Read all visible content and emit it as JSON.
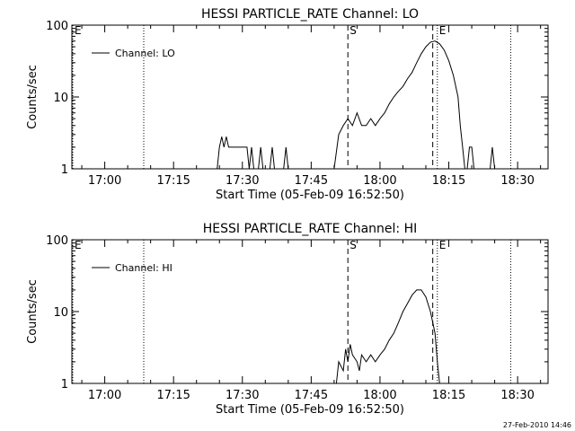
{
  "chart_data": [
    {
      "type": "line",
      "title": "HESSI PARTICLE_RATE Channel: LO",
      "xlabel": "Start Time (05-Feb-09 16:52:50)",
      "ylabel": "Counts/sec",
      "yscale": "log",
      "ylim": [
        1,
        100
      ],
      "xlim_minutes_after_start": [
        0,
        103.8
      ],
      "xticks": [
        "17:00",
        "17:15",
        "17:30",
        "17:45",
        "18:00",
        "18:15",
        "18:30"
      ],
      "yticks": [
        "1",
        "10",
        "100"
      ],
      "legend": {
        "label": "Channel: LO",
        "position": "top-left"
      },
      "markers": [
        {
          "label": "E",
          "style": "dotted",
          "time": "16:52:50"
        },
        {
          "label": "",
          "style": "dotted",
          "time": "17:08:30"
        },
        {
          "label": "S",
          "style": "dashed",
          "time": "17:53:00"
        },
        {
          "label": "",
          "style": "dashed",
          "time": "18:11:30"
        },
        {
          "label": "E",
          "style": "dotted",
          "time": "18:12:30"
        },
        {
          "label": "",
          "style": "dotted",
          "time": "18:28:30"
        }
      ],
      "series": [
        {
          "points": [
            [
              "17:24:30",
              1
            ],
            [
              "17:25:00",
              2
            ],
            [
              "17:25:30",
              2.8
            ],
            [
              "17:26:00",
              2
            ],
            [
              "17:26:30",
              2.8
            ],
            [
              "17:27:00",
              2
            ],
            [
              "17:31:00",
              2
            ],
            [
              "17:31:30",
              1
            ],
            [
              "17:32:00",
              2
            ],
            [
              "17:32:30",
              1
            ],
            [
              "17:33:30",
              1
            ],
            [
              "17:34:00",
              2
            ],
            [
              "17:34:30",
              1
            ],
            [
              "17:36:00",
              1
            ],
            [
              "17:36:30",
              2
            ],
            [
              "17:37:00",
              1
            ],
            [
              "17:39:00",
              1
            ],
            [
              "17:39:30",
              2
            ],
            [
              "17:40:00",
              1
            ],
            [
              "17:50:00",
              1
            ],
            [
              "17:51:00",
              3
            ],
            [
              "17:52:00",
              4
            ],
            [
              "17:53:00",
              5
            ],
            [
              "17:54:00",
              4
            ],
            [
              "17:55:00",
              6
            ],
            [
              "17:56:00",
              4
            ],
            [
              "17:57:00",
              4
            ],
            [
              "17:58:00",
              5
            ],
            [
              "17:59:00",
              4
            ],
            [
              "18:00:00",
              5
            ],
            [
              "18:01:00",
              6
            ],
            [
              "18:02:00",
              8
            ],
            [
              "18:03:00",
              10
            ],
            [
              "18:04:00",
              12
            ],
            [
              "18:05:00",
              14
            ],
            [
              "18:06:00",
              18
            ],
            [
              "18:07:00",
              22
            ],
            [
              "18:08:00",
              30
            ],
            [
              "18:09:00",
              40
            ],
            [
              "18:10:00",
              50
            ],
            [
              "18:11:00",
              58
            ],
            [
              "18:12:00",
              60
            ],
            [
              "18:13:00",
              55
            ],
            [
              "18:14:00",
              45
            ],
            [
              "18:15:00",
              32
            ],
            [
              "18:16:00",
              20
            ],
            [
              "18:17:00",
              10
            ],
            [
              "18:17:30",
              4
            ],
            [
              "18:18:00",
              2
            ],
            [
              "18:18:30",
              1
            ],
            [
              "18:19:00",
              1
            ],
            [
              "18:19:30",
              2
            ],
            [
              "18:20:00",
              2
            ],
            [
              "18:20:30",
              1
            ],
            [
              "18:24:00",
              1
            ],
            [
              "18:24:30",
              2
            ],
            [
              "18:25:00",
              1
            ]
          ]
        }
      ]
    },
    {
      "type": "line",
      "title": "HESSI PARTICLE_RATE Channel: HI",
      "xlabel": "Start Time (05-Feb-09 16:52:50)",
      "ylabel": "Counts/sec",
      "yscale": "log",
      "ylim": [
        1,
        100
      ],
      "xlim_minutes_after_start": [
        0,
        103.8
      ],
      "xticks": [
        "17:00",
        "17:15",
        "17:30",
        "17:45",
        "18:00",
        "18:15",
        "18:30"
      ],
      "yticks": [
        "1",
        "10",
        "100"
      ],
      "legend": {
        "label": "Channel: HI",
        "position": "top-left"
      },
      "markers": [
        {
          "label": "E",
          "style": "dotted",
          "time": "16:52:50"
        },
        {
          "label": "",
          "style": "dotted",
          "time": "17:08:30"
        },
        {
          "label": "S",
          "style": "dashed",
          "time": "17:53:00"
        },
        {
          "label": "",
          "style": "dashed",
          "time": "18:11:30"
        },
        {
          "label": "E",
          "style": "dotted",
          "time": "18:12:30"
        },
        {
          "label": "",
          "style": "dotted",
          "time": "18:28:30"
        }
      ],
      "series": [
        {
          "points": [
            [
              "17:50:30",
              1
            ],
            [
              "17:51:00",
              2
            ],
            [
              "17:52:00",
              1.5
            ],
            [
              "17:52:30",
              3
            ],
            [
              "17:53:00",
              2
            ],
            [
              "17:53:30",
              3.5
            ],
            [
              "17:54:00",
              2.5
            ],
            [
              "17:55:00",
              2
            ],
            [
              "17:55:30",
              1.5
            ],
            [
              "17:56:00",
              2.5
            ],
            [
              "17:57:00",
              2
            ],
            [
              "17:58:00",
              2.5
            ],
            [
              "17:59:00",
              2
            ],
            [
              "18:00:00",
              2.5
            ],
            [
              "18:01:00",
              3
            ],
            [
              "18:02:00",
              4
            ],
            [
              "18:03:00",
              5
            ],
            [
              "18:04:00",
              7
            ],
            [
              "18:05:00",
              10
            ],
            [
              "18:06:00",
              13
            ],
            [
              "18:07:00",
              17
            ],
            [
              "18:08:00",
              20
            ],
            [
              "18:09:00",
              20
            ],
            [
              "18:10:00",
              16
            ],
            [
              "18:11:00",
              10
            ],
            [
              "18:12:00",
              5
            ],
            [
              "18:12:30",
              2
            ],
            [
              "18:13:00",
              1
            ]
          ]
        }
      ]
    }
  ],
  "footer": {
    "stamp": "27-Feb-2010 14:46"
  }
}
